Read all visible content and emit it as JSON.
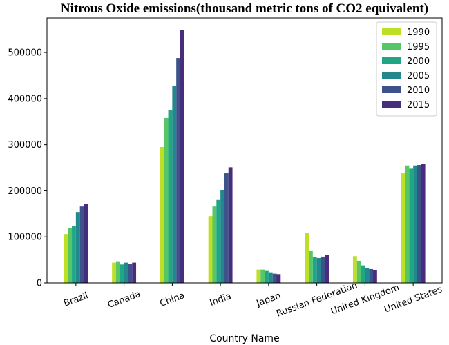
{
  "chart_data": {
    "type": "bar",
    "title": "Nitrous Oxide emissions(thousand metric tons of CO2 equivalent)",
    "xlabel": "Country Name",
    "ylabel": "",
    "categories": [
      "Brazil",
      "Canada",
      "China",
      "India",
      "Japan",
      "Russian Federation",
      "United Kingdom",
      "United States"
    ],
    "ylim": [
      0,
      575000
    ],
    "yticks": [
      0,
      100000,
      200000,
      300000,
      400000,
      500000
    ],
    "ytick_labels": [
      "0",
      "100000",
      "200000",
      "300000",
      "400000",
      "500000"
    ],
    "grid": false,
    "legend_position": "top-right",
    "series": [
      {
        "name": "1990",
        "color": "#bddf26",
        "values": [
          106000,
          44000,
          295000,
          145000,
          29000,
          108000,
          58000,
          238000
        ]
      },
      {
        "name": "1995",
        "color": "#56c667",
        "values": [
          119000,
          47000,
          358000,
          166000,
          29000,
          69000,
          48000,
          255000
        ]
      },
      {
        "name": "2000",
        "color": "#21a685",
        "values": [
          124000,
          40000,
          375000,
          180000,
          26000,
          56000,
          38000,
          248000
        ]
      },
      {
        "name": "2005",
        "color": "#23888e",
        "values": [
          154000,
          44000,
          427000,
          201000,
          23000,
          54000,
          33000,
          255000
        ]
      },
      {
        "name": "2010",
        "color": "#3b528b",
        "values": [
          166000,
          41000,
          488000,
          238000,
          20000,
          57000,
          30000,
          256000
        ]
      },
      {
        "name": "2015",
        "color": "#472d7b",
        "values": [
          171000,
          44000,
          549000,
          251000,
          19000,
          61000,
          28000,
          259000
        ]
      }
    ]
  }
}
